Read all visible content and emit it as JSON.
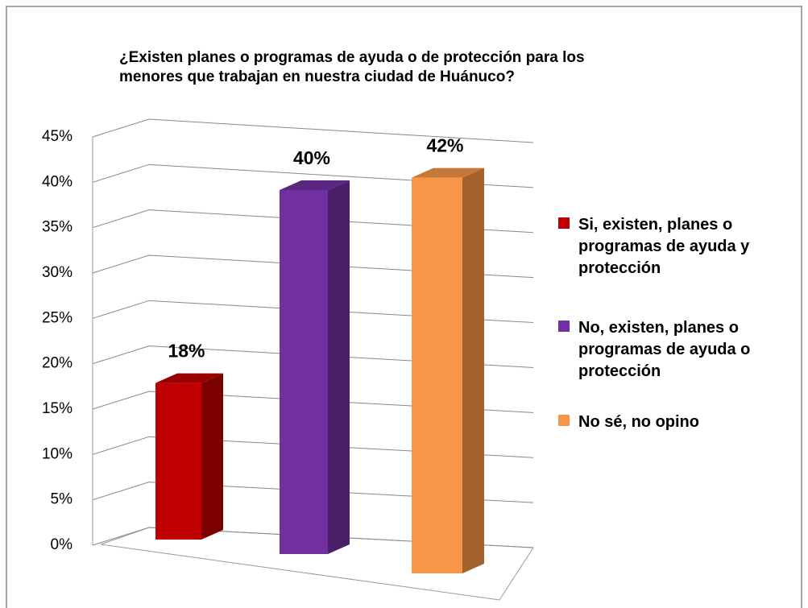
{
  "chart_data": {
    "type": "bar3d",
    "title": "¿Existen planes o programas de ayuda o de protección para los menores que trabajan en nuestra ciudad de Huánuco?",
    "categories": [
      "Si, existen, planes o programas de ayuda y protección",
      "No, existen, planes o programas de ayuda o protección",
      "No sé, no opino"
    ],
    "values": [
      18,
      40,
      42
    ],
    "value_labels": [
      "18%",
      "40%",
      "42%"
    ],
    "colors": [
      "#c00000",
      "#7030a0",
      "#f79646"
    ],
    "ylim": [
      0,
      45
    ],
    "yticks": [
      {
        "value": 0,
        "label": "0%"
      },
      {
        "value": 5,
        "label": "5%"
      },
      {
        "value": 10,
        "label": "10%"
      },
      {
        "value": 15,
        "label": "15%"
      },
      {
        "value": 20,
        "label": "20%"
      },
      {
        "value": 25,
        "label": "25%"
      },
      {
        "value": 30,
        "label": "30%"
      },
      {
        "value": 35,
        "label": "35%"
      },
      {
        "value": 40,
        "label": "40%"
      },
      {
        "value": 45,
        "label": "45%"
      }
    ],
    "grid": true,
    "legend": "right"
  }
}
